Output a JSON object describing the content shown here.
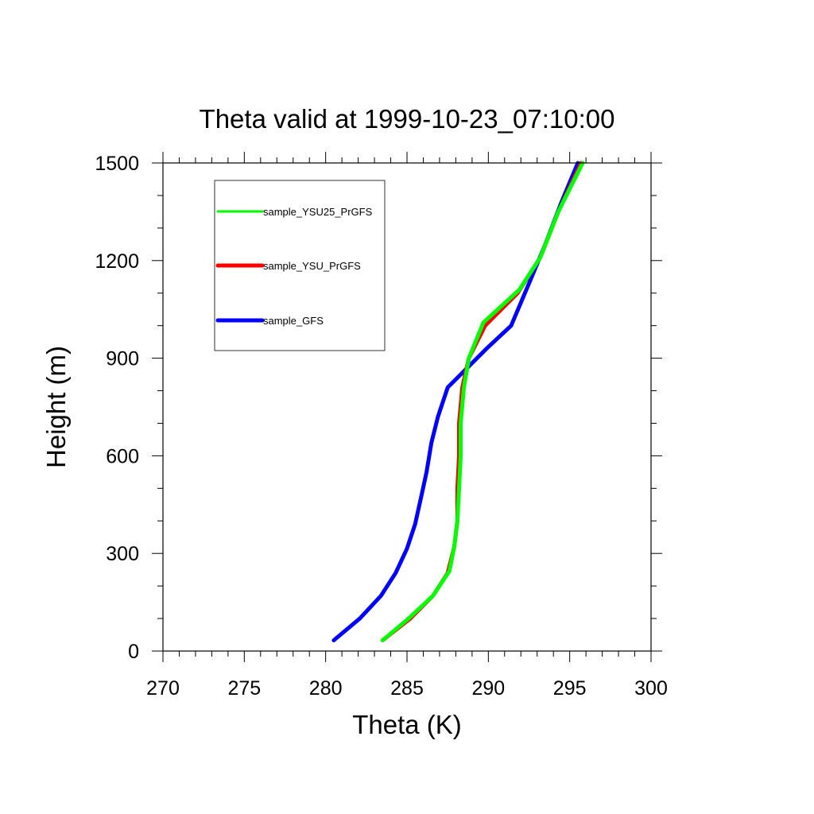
{
  "chart_data": {
    "type": "line",
    "title": "Theta valid at 1999-10-23_07:10:00",
    "xlabel": "Theta (K)",
    "ylabel": "Height (m)",
    "xlim": [
      270,
      300
    ],
    "ylim": [
      0,
      1500
    ],
    "x_ticks": [
      "270",
      "275",
      "280",
      "285",
      "290",
      "295",
      "300"
    ],
    "y_ticks": [
      "0",
      "300",
      "600",
      "900",
      "1200",
      "1500"
    ],
    "x_tick_values": [
      270,
      275,
      280,
      285,
      290,
      295,
      300
    ],
    "y_tick_values": [
      0,
      300,
      600,
      900,
      1200,
      1500
    ],
    "grid": false,
    "legend_position": "top-left (boxed)",
    "series": [
      {
        "name": "sample_YSU25_PrGFS",
        "color": "#00ff00",
        "points": [
          [
            283.5,
            33
          ],
          [
            285.1,
            100
          ],
          [
            286.6,
            170
          ],
          [
            287.6,
            245
          ],
          [
            287.9,
            320
          ],
          [
            288.1,
            400
          ],
          [
            288.2,
            500
          ],
          [
            288.3,
            600
          ],
          [
            288.3,
            700
          ],
          [
            288.5,
            810
          ],
          [
            288.8,
            900
          ],
          [
            289.7,
            1010
          ],
          [
            291.9,
            1110
          ],
          [
            293.2,
            1210
          ],
          [
            294.3,
            1350
          ],
          [
            295.8,
            1500
          ]
        ]
      },
      {
        "name": "sample_YSU_PrGFS",
        "color": "#ff0000",
        "points": [
          [
            283.5,
            33
          ],
          [
            285.2,
            100
          ],
          [
            286.6,
            170
          ],
          [
            287.5,
            240
          ],
          [
            287.9,
            320
          ],
          [
            288.1,
            400
          ],
          [
            288.1,
            500
          ],
          [
            288.2,
            600
          ],
          [
            288.2,
            700
          ],
          [
            288.4,
            810
          ],
          [
            288.8,
            900
          ],
          [
            289.8,
            1000
          ],
          [
            291.8,
            1100
          ],
          [
            293.2,
            1210
          ],
          [
            294.3,
            1350
          ],
          [
            295.7,
            1500
          ]
        ]
      },
      {
        "name": "sample_GFS",
        "color": "#0000ff",
        "points": [
          [
            280.5,
            33
          ],
          [
            282.1,
            100
          ],
          [
            283.4,
            170
          ],
          [
            284.3,
            240
          ],
          [
            285.0,
            315
          ],
          [
            285.5,
            390
          ],
          [
            285.9,
            480
          ],
          [
            286.2,
            550
          ],
          [
            286.5,
            640
          ],
          [
            286.9,
            720
          ],
          [
            287.5,
            810
          ],
          [
            289.9,
            930
          ],
          [
            291.4,
            1000
          ],
          [
            292.5,
            1130
          ],
          [
            293.5,
            1250
          ],
          [
            294.5,
            1380
          ],
          [
            295.5,
            1500
          ]
        ]
      }
    ]
  }
}
